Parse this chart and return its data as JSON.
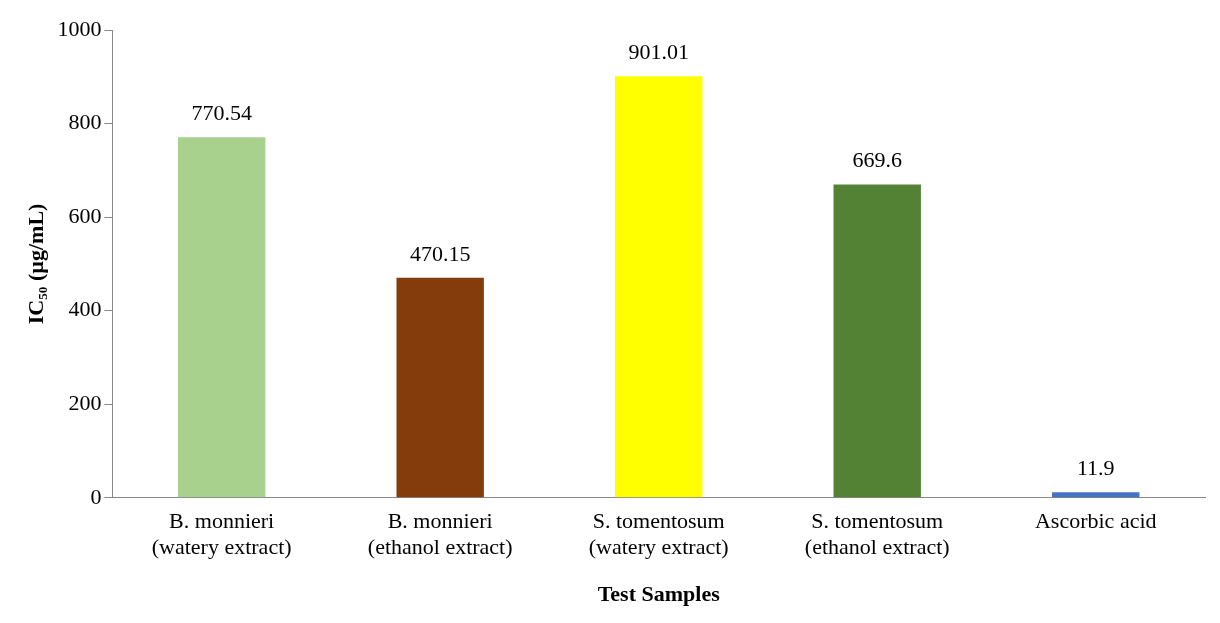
{
  "chart_data": {
    "type": "bar",
    "xlabel": "Test Samples",
    "ylabel": "IC₅₀ (µg/mL)",
    "categories": [
      "B. monnieri\n(watery extract)",
      "B. monnieri\n(ethanol extract)",
      "S. tomentosum\n(watery extract)",
      "S. tomentosum\n(ethanol extract)",
      "Ascorbic acid"
    ],
    "values": [
      770.54,
      470.15,
      901.01,
      669.6,
      11.9
    ],
    "colors": [
      "#a9d18e",
      "#843c0c",
      "#ffff00",
      "#548235",
      "#4472c4"
    ],
    "ylim": [
      0,
      1000
    ],
    "yticks": [
      0,
      200,
      400,
      600,
      800,
      1000
    ],
    "grid": false,
    "legend": false,
    "data_labels": true
  }
}
